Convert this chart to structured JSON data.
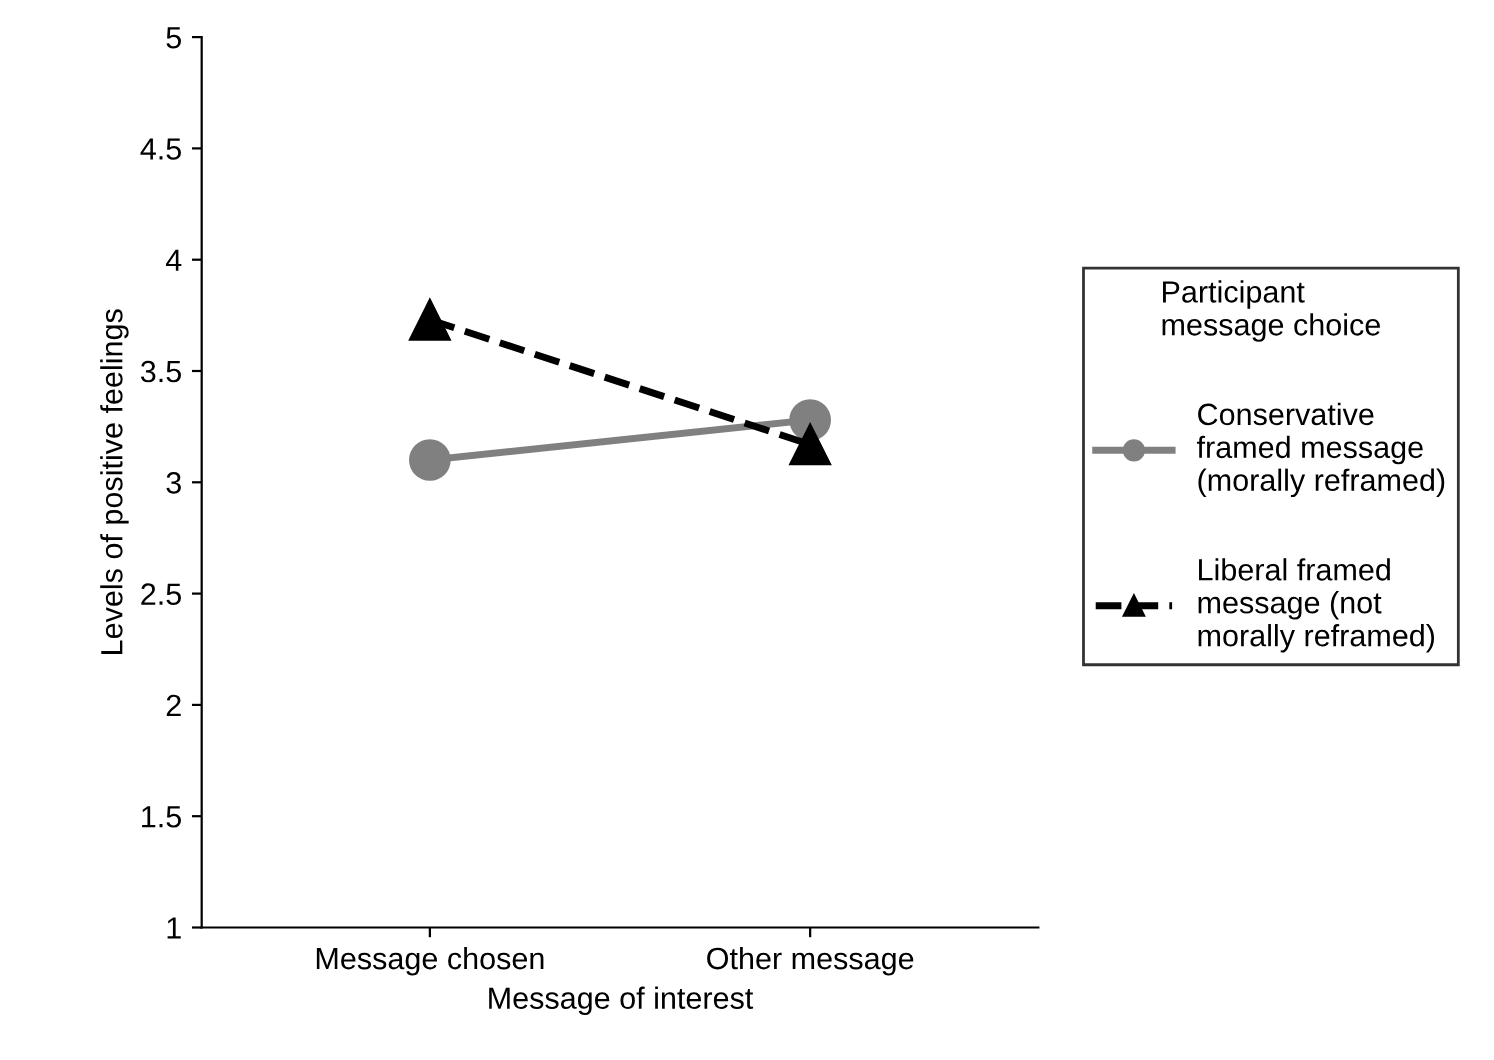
{
  "chart_data": {
    "type": "line",
    "xlabel": "Message of interest",
    "ylabel": "Levels of positive feelings",
    "legend_title": "Participant\nmessage choice",
    "categories": [
      "Message chosen",
      "Other message"
    ],
    "series": [
      {
        "name": "Conservative\nframed message\n(morally reframed)",
        "color": "#808080",
        "values": [
          3.1,
          3.28
        ],
        "marker": "circle",
        "line_style": "solid"
      },
      {
        "name": "Liberal framed\nmessage (not\nmorally reframed)",
        "color": "#000000",
        "values": [
          3.73,
          3.17
        ],
        "marker": "triangle",
        "line_style": "dashed"
      }
    ],
    "ylim": [
      1,
      5
    ],
    "yticks": [
      1,
      1.5,
      2,
      2.5,
      3,
      3.5,
      4,
      4.5,
      5
    ],
    "grid": false,
    "legend": "right"
  }
}
